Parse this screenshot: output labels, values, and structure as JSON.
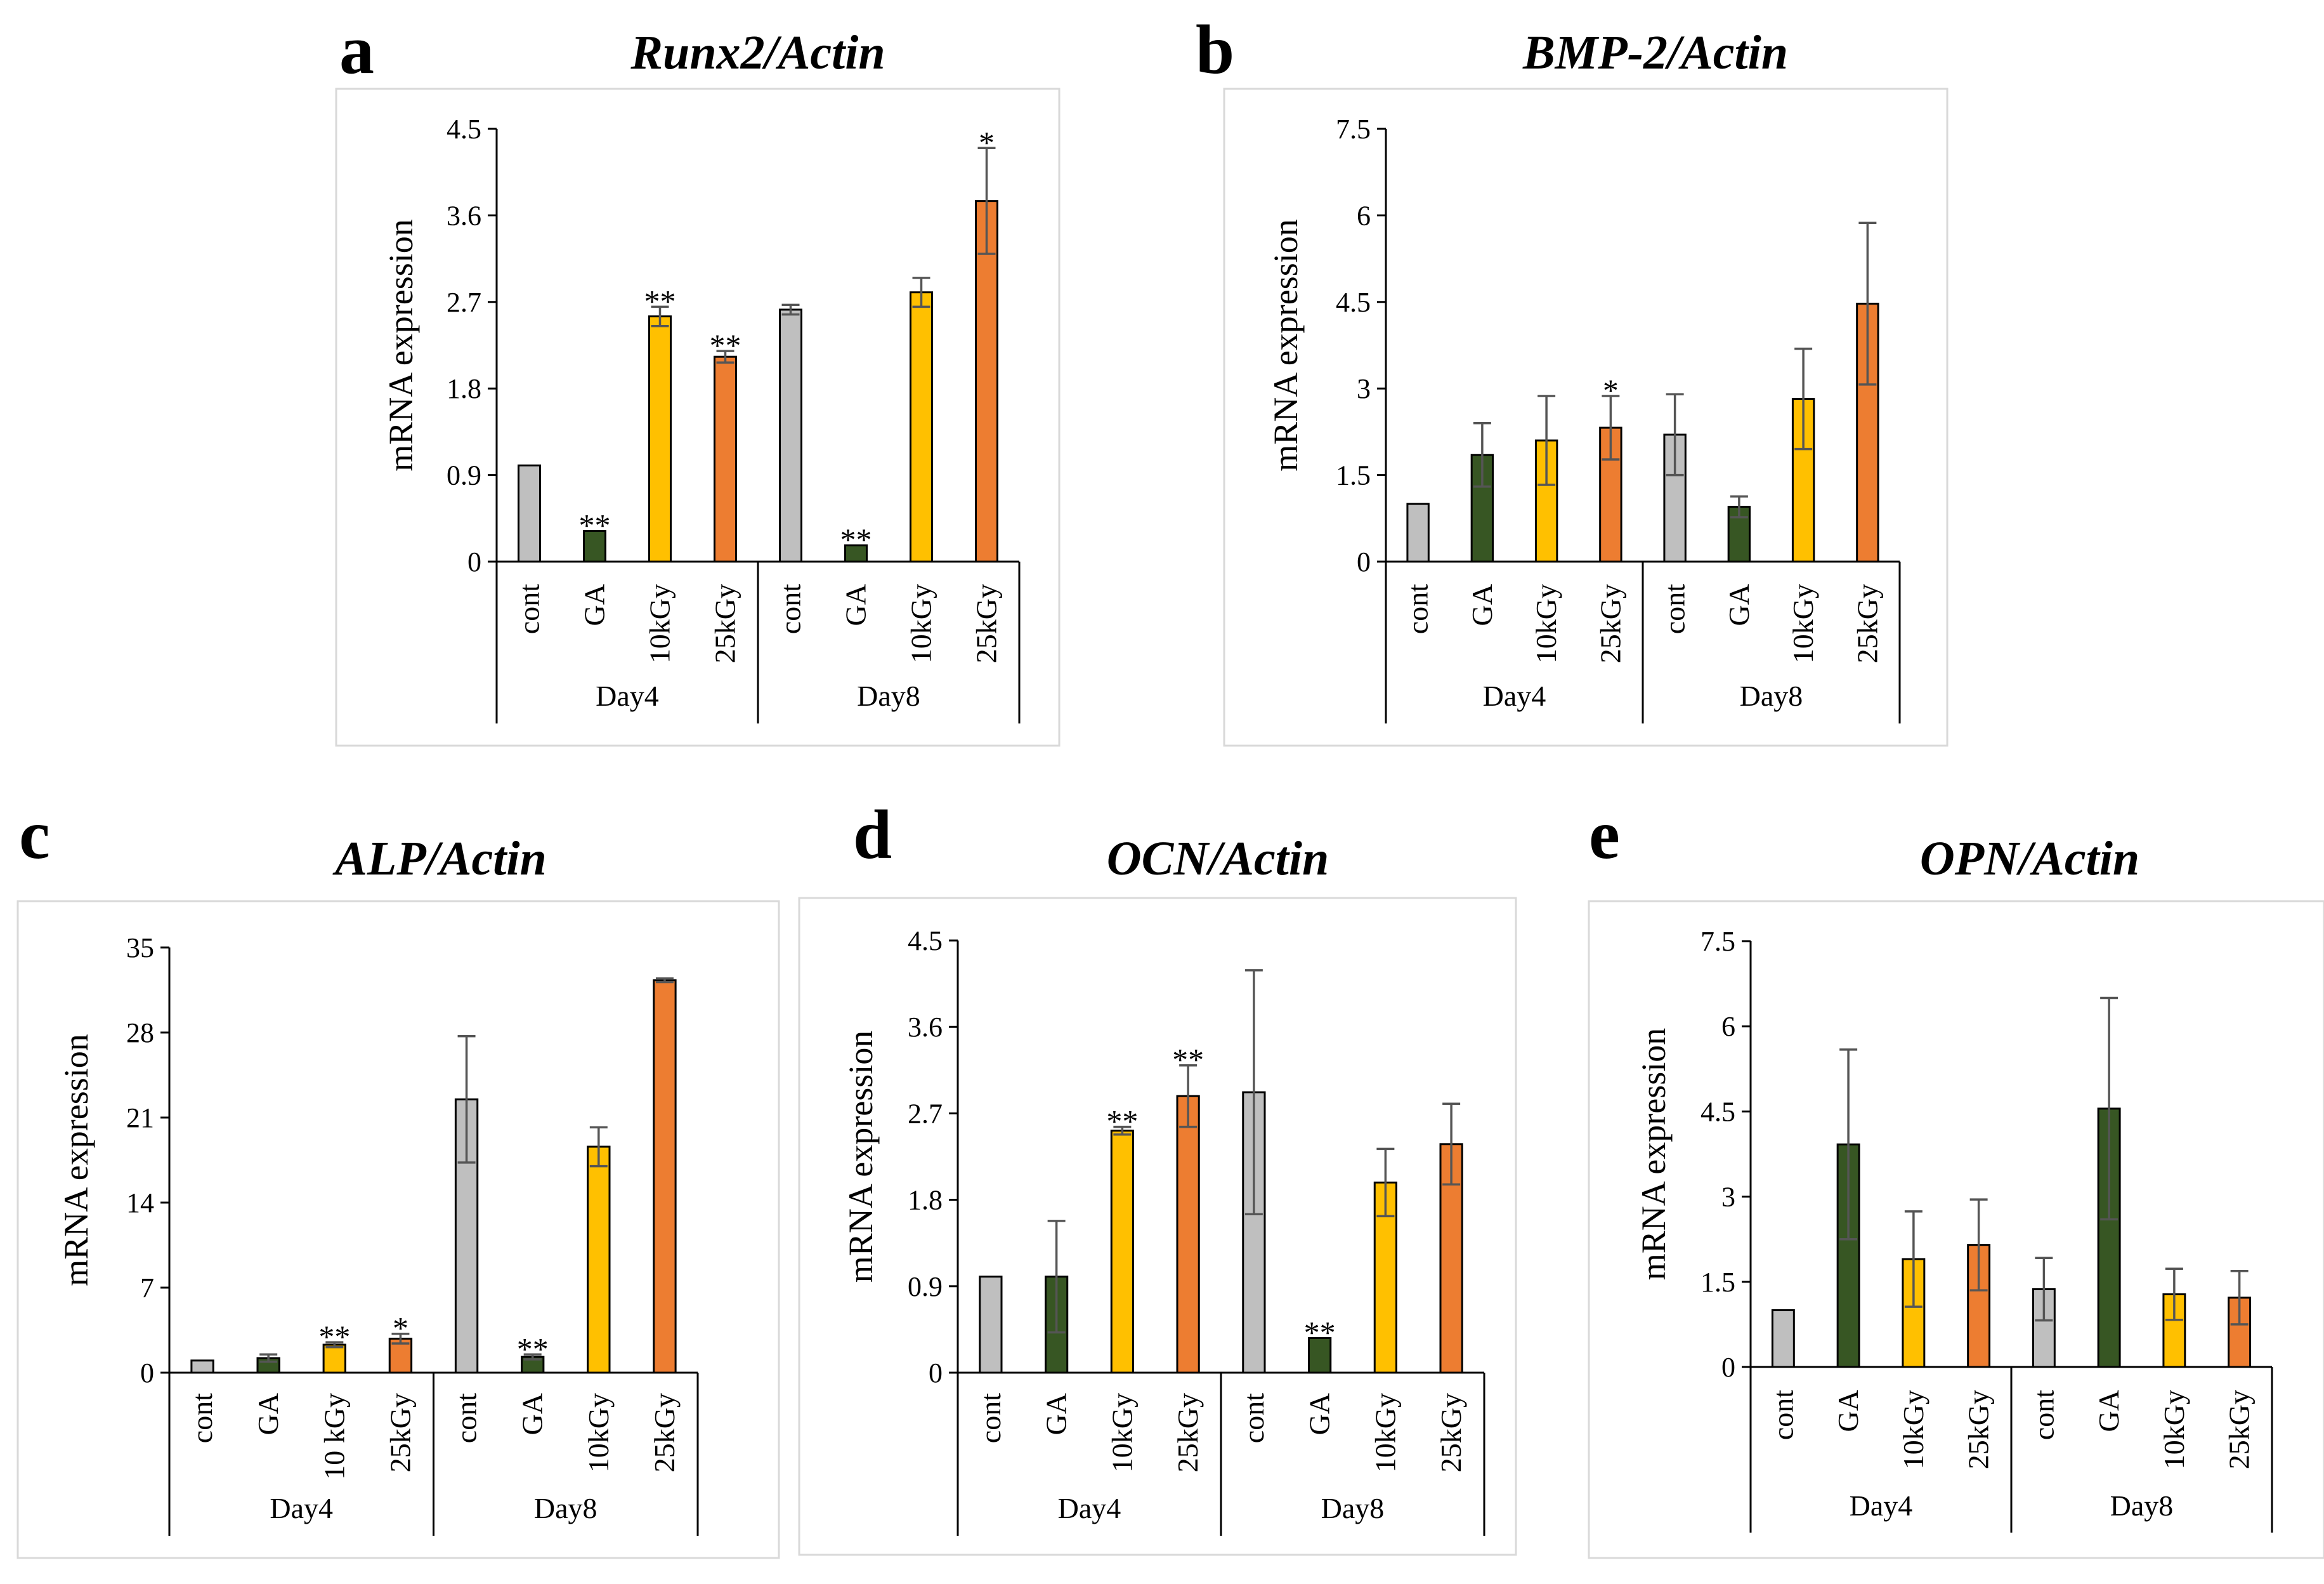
{
  "colors": {
    "cont": "#bfbfbf",
    "GA": "#375623",
    "10kGy": "#ffc000",
    "25kGy": "#ed7d31"
  },
  "chart_data": [
    {
      "panel": "a",
      "type": "bar",
      "title": "Runx2/Actin",
      "ylabel": "mRNA expression",
      "ylim": [
        0,
        4.5
      ],
      "yticks": [
        "0",
        "0.9",
        "1.8",
        "2.7",
        "3.6",
        "4.5"
      ],
      "groups": [
        "Day4",
        "Day8"
      ],
      "categories": [
        "cont",
        "GA",
        "10kGy",
        "25kGy",
        "cont",
        "GA",
        "10kGy",
        "25kGy"
      ],
      "color_keys": [
        "cont",
        "GA",
        "10kGy",
        "25kGy",
        "cont",
        "GA",
        "10kGy",
        "25kGy"
      ],
      "values": [
        1.0,
        0.32,
        2.55,
        2.13,
        2.62,
        0.17,
        2.8,
        3.75
      ],
      "errors": [
        0,
        0,
        0.1,
        0.06,
        0.05,
        0,
        0.15,
        0.55
      ],
      "significance": [
        "",
        "**",
        "**",
        "**",
        "",
        "**",
        "",
        "*"
      ]
    },
    {
      "panel": "b",
      "type": "bar",
      "title": "BMP-2/Actin",
      "ylabel": "mRNA expression",
      "ylim": [
        0,
        7.5
      ],
      "yticks": [
        "0",
        "1.5",
        "3",
        "4.5",
        "6",
        "7.5"
      ],
      "groups": [
        "Day4",
        "Day8"
      ],
      "categories": [
        "cont",
        "GA",
        "10kGy",
        "25kGy",
        "cont",
        "GA",
        "10kGy",
        "25kGy"
      ],
      "color_keys": [
        "cont",
        "GA",
        "10kGy",
        "25kGy",
        "cont",
        "GA",
        "10kGy",
        "25kGy"
      ],
      "values": [
        1.0,
        1.85,
        2.1,
        2.32,
        2.2,
        0.95,
        2.82,
        4.47
      ],
      "errors": [
        0,
        0.55,
        0.77,
        0.55,
        0.7,
        0.18,
        0.87,
        1.4
      ],
      "significance": [
        "",
        "",
        "",
        "*",
        "",
        "",
        "",
        ""
      ]
    },
    {
      "panel": "c",
      "type": "bar",
      "title": "ALP/Actin",
      "ylabel": "mRNA expression",
      "ylim": [
        0,
        35
      ],
      "yticks": [
        "0",
        "7",
        "14",
        "21",
        "28",
        "35"
      ],
      "groups": [
        "Day4",
        "Day8"
      ],
      "categories": [
        "cont",
        "GA",
        "10 kGy",
        "25kGy",
        "cont",
        "GA",
        "10kGy",
        "25kGy"
      ],
      "color_keys": [
        "cont",
        "GA",
        "10kGy",
        "25kGy",
        "cont",
        "GA",
        "10kGy",
        "25kGy"
      ],
      "values": [
        1.0,
        1.2,
        2.3,
        2.8,
        22.5,
        1.3,
        18.6,
        32.3
      ],
      "errors": [
        0,
        0.3,
        0.2,
        0.4,
        5.2,
        0.2,
        1.6,
        0.15
      ],
      "significance": [
        "",
        "",
        "**",
        "*",
        "",
        "**",
        "",
        ""
      ]
    },
    {
      "panel": "d",
      "type": "bar",
      "title": "OCN/Actin",
      "ylabel": "mRNA expression",
      "ylim": [
        0,
        4.5
      ],
      "yticks": [
        "0",
        "0.9",
        "1.8",
        "2.7",
        "3.6",
        "4.5"
      ],
      "groups": [
        "Day4",
        "Day8"
      ],
      "categories": [
        "cont",
        "GA",
        "10kGy",
        "25kGy",
        "cont",
        "GA",
        "10kGy",
        "25kGy"
      ],
      "color_keys": [
        "cont",
        "GA",
        "10kGy",
        "25kGy",
        "cont",
        "GA",
        "10kGy",
        "25kGy"
      ],
      "values": [
        1.0,
        1.0,
        2.52,
        2.88,
        2.92,
        0.36,
        1.98,
        2.38
      ],
      "errors": [
        0,
        0.58,
        0.04,
        0.32,
        1.27,
        0,
        0.35,
        0.42
      ],
      "significance": [
        "",
        "",
        "**",
        "**",
        "",
        "**",
        "",
        ""
      ]
    },
    {
      "panel": "e",
      "type": "bar",
      "title": "OPN/Actin",
      "ylabel": "mRNA expression",
      "ylim": [
        0,
        7.5
      ],
      "yticks": [
        "0",
        "1.5",
        "3",
        "4.5",
        "6",
        "7.5"
      ],
      "groups": [
        "Day4",
        "Day8"
      ],
      "categories": [
        "cont",
        "GA",
        "10kGy",
        "25kGy",
        "cont",
        "GA",
        "10kGy",
        "25kGy"
      ],
      "color_keys": [
        "cont",
        "GA",
        "10kGy",
        "25kGy",
        "cont",
        "GA",
        "10kGy",
        "25kGy"
      ],
      "values": [
        1.0,
        3.92,
        1.9,
        2.15,
        1.37,
        4.55,
        1.28,
        1.22
      ],
      "errors": [
        0,
        1.67,
        0.84,
        0.8,
        0.55,
        1.95,
        0.45,
        0.47
      ],
      "significance": [
        "",
        "",
        "",
        "",
        "",
        "",
        "",
        ""
      ]
    }
  ]
}
